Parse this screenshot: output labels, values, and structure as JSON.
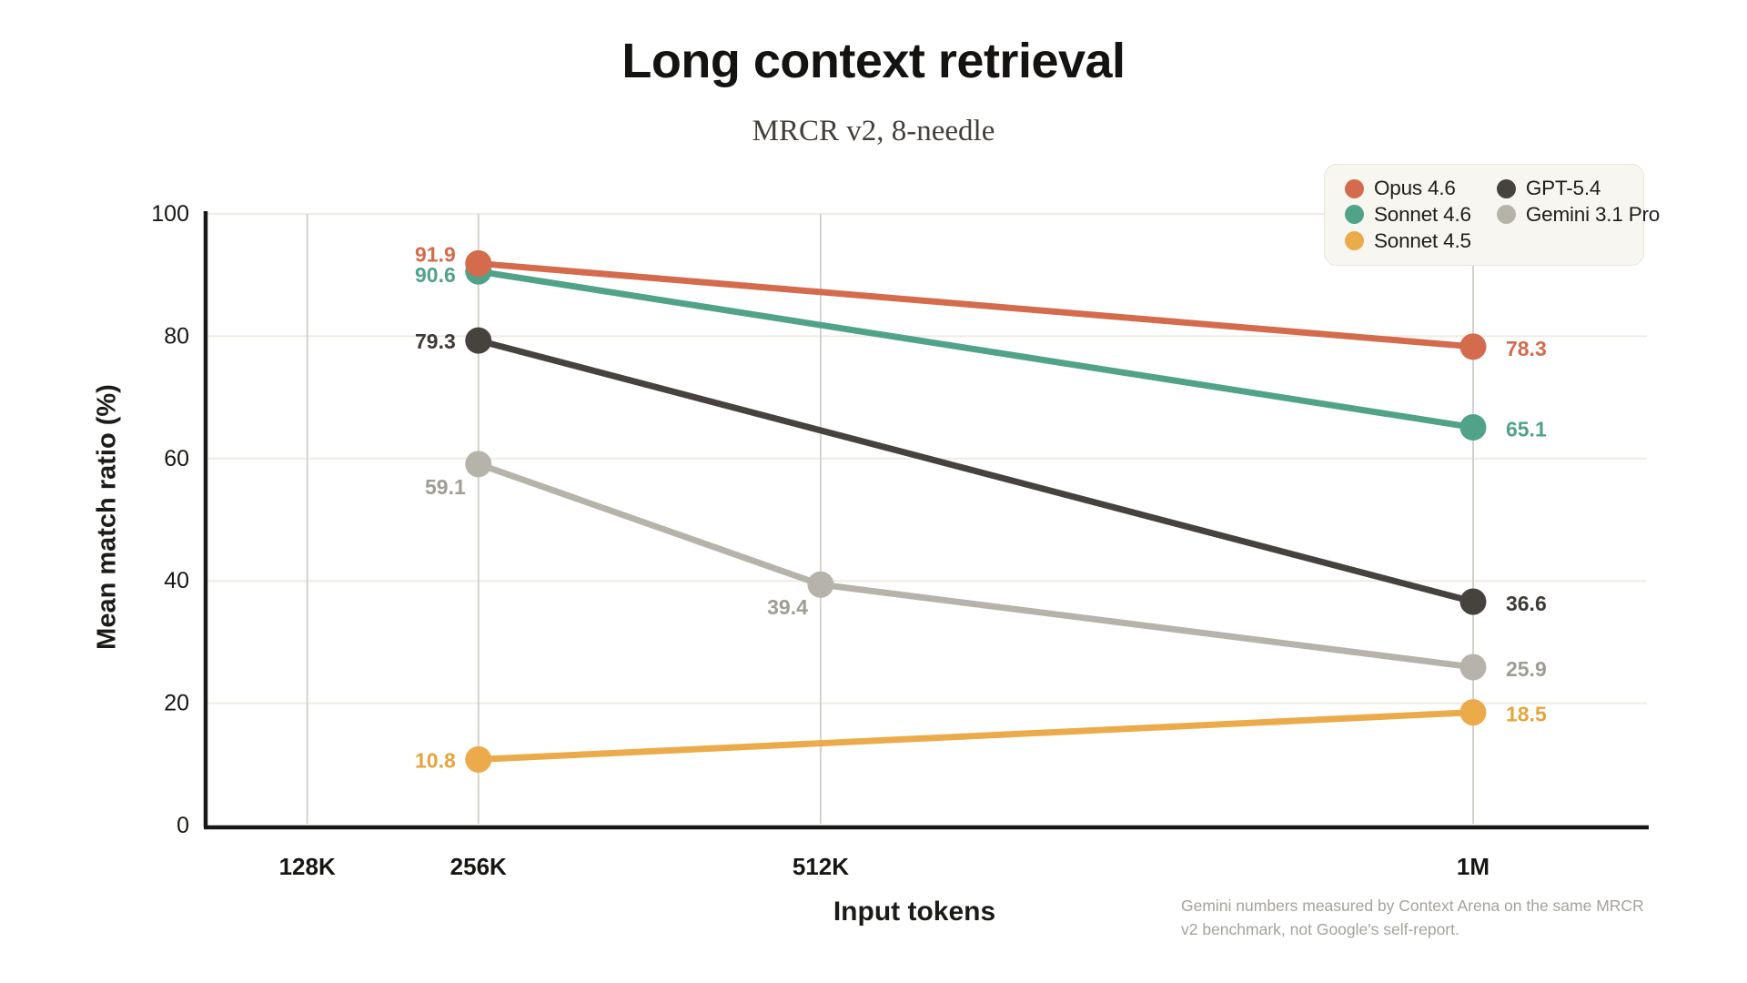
{
  "header": {
    "title": "Long context retrieval",
    "subtitle": "MRCR v2, 8-needle"
  },
  "chart_data": {
    "type": "line",
    "title": "Long context retrieval",
    "subtitle": "MRCR v2, 8-needle",
    "xlabel": "Input tokens",
    "ylabel": "Mean match ratio (%)",
    "x_unit": "tokens, millions",
    "x_domain": [
      0.052,
      1.13
    ],
    "ylim": [
      0,
      100
    ],
    "grid": {
      "horizontal": true,
      "vertical": true
    },
    "legend_position": "top-right",
    "x_ticks": [
      {
        "value": 0.128,
        "label": "128K"
      },
      {
        "value": 0.256,
        "label": "256K"
      },
      {
        "value": 0.512,
        "label": "512K"
      },
      {
        "value": 1.0,
        "label": "1M"
      }
    ],
    "y_ticks": [
      0,
      20,
      40,
      60,
      80,
      100
    ],
    "series": [
      {
        "name": "Opus 4.6",
        "color": "#d36b4c",
        "label_color": "#d36b4c",
        "points": [
          {
            "x": 0.256,
            "y": 91.9,
            "label": "91.9",
            "label_pos": "left-up"
          },
          {
            "x": 1.0,
            "y": 78.3,
            "label": "78.3",
            "label_pos": "right"
          }
        ]
      },
      {
        "name": "Sonnet 4.6",
        "color": "#50a389",
        "label_color": "#50a389",
        "points": [
          {
            "x": 0.256,
            "y": 90.6,
            "label": "90.6",
            "label_pos": "left-down"
          },
          {
            "x": 1.0,
            "y": 65.1,
            "label": "65.1",
            "label_pos": "right"
          }
        ]
      },
      {
        "name": "Sonnet 4.5",
        "color": "#ebab4b",
        "label_color": "#e5a43e",
        "points": [
          {
            "x": 0.256,
            "y": 10.8,
            "label": "10.8",
            "label_pos": "left"
          },
          {
            "x": 1.0,
            "y": 18.5,
            "label": "18.5",
            "label_pos": "right"
          }
        ]
      },
      {
        "name": "GPT-5.4",
        "color": "#46433e",
        "label_color": "#3e3b37",
        "points": [
          {
            "x": 0.256,
            "y": 79.3,
            "label": "79.3",
            "label_pos": "left"
          },
          {
            "x": 1.0,
            "y": 36.6,
            "label": "36.6",
            "label_pos": "right"
          }
        ]
      },
      {
        "name": "Gemini 3.1 Pro",
        "color": "#b6b4aa",
        "label_color": "#9f9d94",
        "points": [
          {
            "x": 0.256,
            "y": 59.1,
            "label": "59.1",
            "label_pos": "below-left"
          },
          {
            "x": 0.512,
            "y": 39.4,
            "label": "39.4",
            "label_pos": "below-left"
          },
          {
            "x": 1.0,
            "y": 25.9,
            "label": "25.9",
            "label_pos": "right"
          }
        ]
      }
    ],
    "footnote_lines": [
      "Gemini numbers measured by Context Arena on the same MRCR",
      "v2 benchmark, not Google's self-report."
    ]
  },
  "style": {
    "axis_color": "#191816",
    "h_grid_color": "#eeece3",
    "v_grid_color": "#d4d2cb",
    "tick_label_color": "#171613",
    "background": "#ffffff"
  }
}
